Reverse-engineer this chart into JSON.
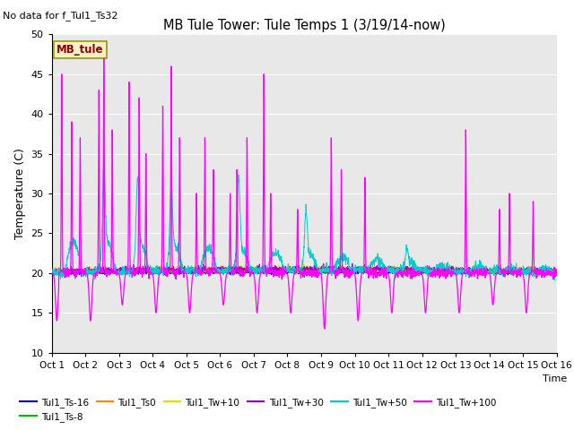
{
  "title": "MB Tule Tower: Tule Temps 1 (3/19/14-now)",
  "no_data_text": "No data for f_Tul1_Ts32",
  "xlabel": "Time",
  "ylabel": "Temperature (C)",
  "ylim": [
    10,
    50
  ],
  "xlim": [
    0,
    15
  ],
  "xtick_positions": [
    0,
    1,
    2,
    3,
    4,
    5,
    6,
    7,
    8,
    9,
    10,
    11,
    12,
    13,
    14,
    15
  ],
  "xtick_labels": [
    "Oct 1",
    "Oct 2",
    "Oct 3",
    "Oct 4",
    "Oct 5",
    "Oct 6",
    "Oct 7",
    "Oct 8",
    "Oct 9",
    "Oct 10",
    "Oct 11",
    "Oct 12",
    "Oct 13",
    "Oct 14",
    "Oct 15",
    "Oct 16"
  ],
  "ytick_vals": [
    10,
    15,
    20,
    25,
    30,
    35,
    40,
    45,
    50
  ],
  "legend_label": "MB_tule",
  "legend_box_facecolor": "#f5f0c8",
  "legend_box_edgecolor": "#999900",
  "legend_text_color": "#8b0000",
  "series_colors": {
    "Tul1_Ts-16": "#0000cc",
    "Tul1_Ts-8": "#00bb00",
    "Tul1_Ts0": "#ff8800",
    "Tul1_Tw+10": "#dddd00",
    "Tul1_Tw+30": "#9900cc",
    "Tul1_Tw+50": "#00cccc",
    "Tul1_Tw+100": "#ff00ff"
  },
  "plot_bg_color": "#e8e8e8",
  "magenta_spike_peaks": [
    45,
    39,
    37,
    43,
    47,
    38,
    44,
    42,
    35,
    41,
    46,
    37,
    30,
    37,
    33,
    30,
    33,
    37,
    45,
    30,
    28,
    37,
    33,
    32,
    38,
    28,
    30,
    29
  ],
  "magenta_spike_positions": [
    0.3,
    0.6,
    0.85,
    1.4,
    1.55,
    1.8,
    2.3,
    2.6,
    2.8,
    3.3,
    3.55,
    3.8,
    4.3,
    4.55,
    4.8,
    5.3,
    5.5,
    5.8,
    6.3,
    6.5,
    7.3,
    8.3,
    8.6,
    9.3,
    12.3,
    13.3,
    13.6,
    14.3
  ],
  "magenta_night_drops": [
    0.15,
    1.15,
    2.1,
    3.1,
    4.1,
    5.1,
    6.1,
    7.1,
    8.1,
    9.1,
    10.1,
    11.1,
    12.1,
    13.1,
    14.1
  ],
  "magenta_low_vals": [
    14,
    14,
    16,
    15,
    15,
    16,
    15,
    15,
    13,
    14,
    15,
    15,
    15,
    16,
    15
  ],
  "cyan_peaks": [
    1.55,
    2.55,
    3.55,
    5.55,
    7.55,
    10.55
  ],
  "cyan_peak_heights": [
    30,
    29,
    28,
    30,
    26,
    22
  ]
}
